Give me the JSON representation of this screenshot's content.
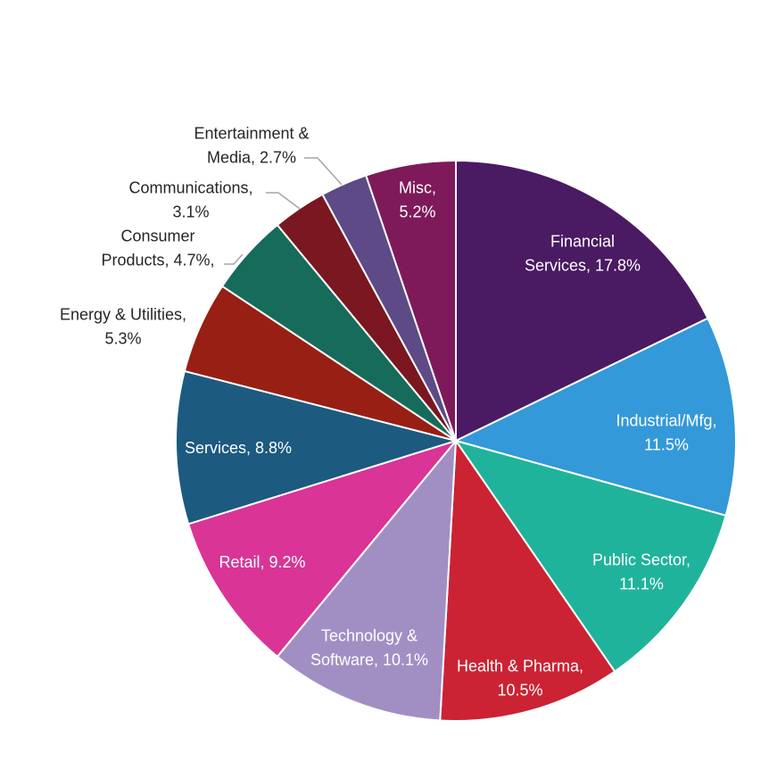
{
  "chart_data": {
    "type": "pie",
    "series": [
      {
        "slices": [
          {
            "name": "Financial Services",
            "value": 17.8,
            "label_lines": [
              "Financial",
              "Services, 17.8%"
            ],
            "color": "#4A1A63",
            "text_color": "#ffffff"
          },
          {
            "name": "Industrial/Mfg",
            "value": 11.5,
            "label_lines": [
              "Industrial/Mfg,",
              "11.5%"
            ],
            "color": "#3399D8",
            "text_color": "#ffffff"
          },
          {
            "name": "Public Sector",
            "value": 11.1,
            "label_lines": [
              "Public Sector,",
              "11.1%"
            ],
            "color": "#20B39B",
            "text_color": "#ffffff"
          },
          {
            "name": "Health & Pharma",
            "value": 10.5,
            "label_lines": [
              "Health & Pharma,",
              "10.5%"
            ],
            "color": "#CB2333",
            "text_color": "#ffffff"
          },
          {
            "name": "Technology & Software",
            "value": 10.1,
            "label_lines": [
              "Technology &",
              "Software, 10.1%"
            ],
            "color": "#A18FC4",
            "text_color": "#ffffff"
          },
          {
            "name": "Retail",
            "value": 9.2,
            "label_lines": [
              "Retail, 9.2%"
            ],
            "color": "#D93496",
            "text_color": "#ffffff"
          },
          {
            "name": "Services",
            "value": 8.8,
            "label_lines": [
              "Services, 8.8%"
            ],
            "color": "#1C5A80",
            "text_color": "#ffffff"
          },
          {
            "name": "Energy & Utilities",
            "value": 5.3,
            "label_lines": [
              "Energy & Utilities,",
              "5.3%"
            ],
            "color": "#981F14",
            "text_color": "#262626"
          },
          {
            "name": "Consumer Products",
            "value": 4.7,
            "label_lines": [
              "Consumer",
              "Products, 4.7%,"
            ],
            "color": "#176B5B",
            "text_color": "#262626"
          },
          {
            "name": "Communications",
            "value": 3.1,
            "label_lines": [
              "Communications,",
              "3.1%"
            ],
            "color": "#7A1720",
            "text_color": "#262626"
          },
          {
            "name": "Entertainment & Media",
            "value": 2.7,
            "label_lines": [
              "Entertainment &",
              "Media, 2.7%"
            ],
            "color": "#5D4A86",
            "text_color": "#262626"
          },
          {
            "name": "Misc",
            "value": 5.2,
            "label_lines": [
              "Misc,",
              "5.2%"
            ],
            "color": "#7E1A5A",
            "text_color": "#ffffff"
          }
        ]
      }
    ]
  }
}
